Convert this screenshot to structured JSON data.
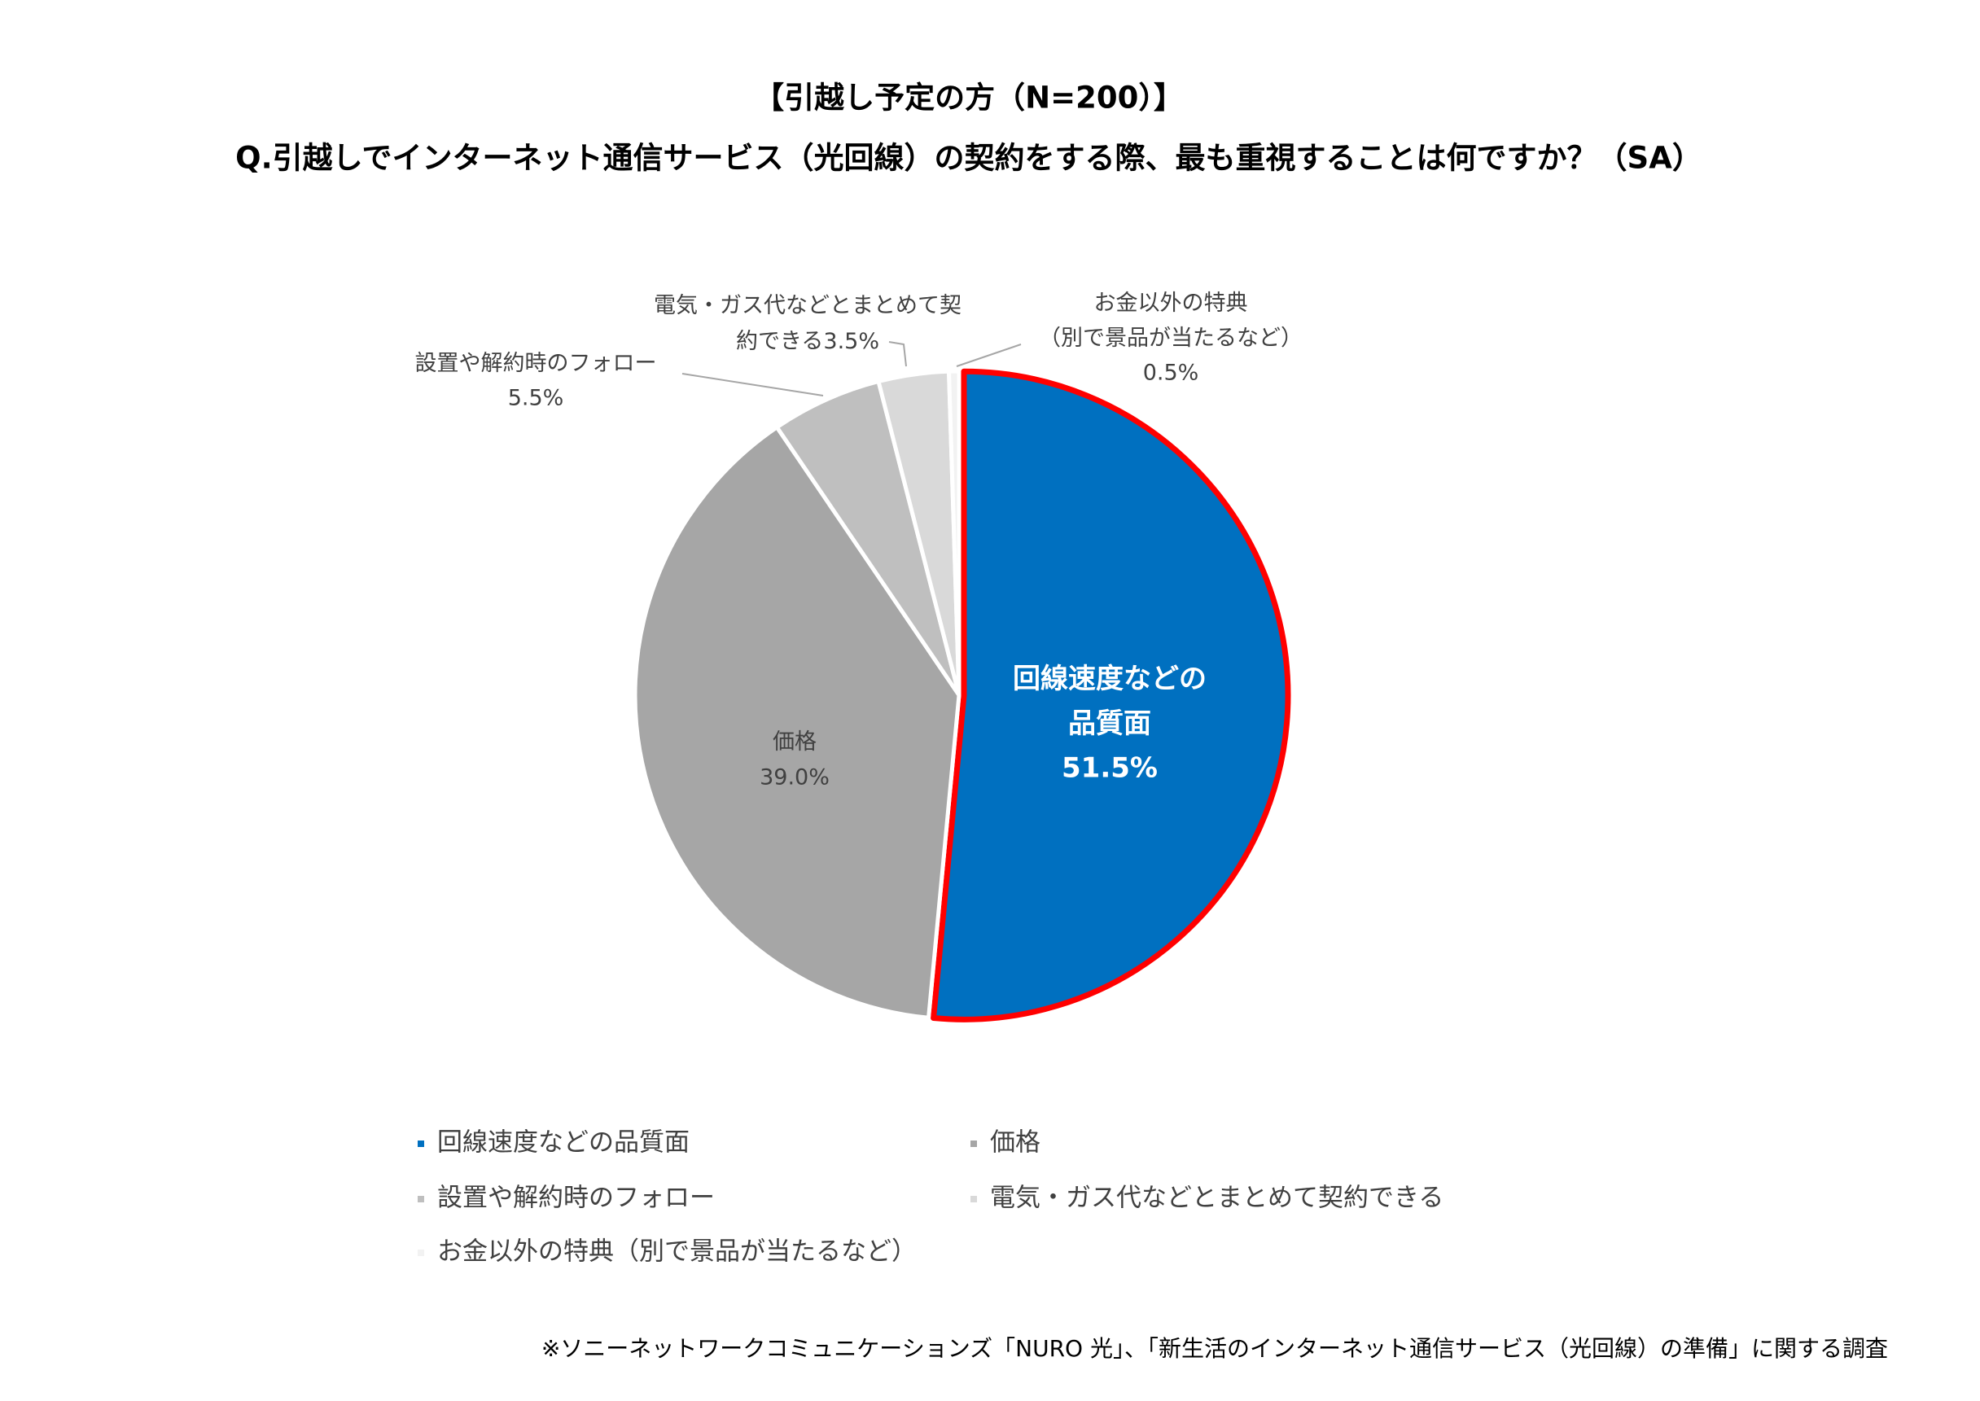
{
  "chart_data": {
    "type": "pie",
    "title": "【引越し予定の方（N=200）】",
    "subtitle": "Q.引越しでインターネット通信サービス（光回線）の契約をする際、最も重視することは何ですか？（SA）",
    "categories": [
      "回線速度などの品質面",
      "価格",
      "設置や解約時のフォロー",
      "電気・ガス代などとまとめて契約できる",
      "お金以外の特典（別で景品が当たるなど）"
    ],
    "values": [
      51.5,
      39.0,
      5.5,
      3.5,
      0.5
    ],
    "value_labels": [
      "51.5%",
      "39.0%",
      "5.5%",
      "3.5%",
      "0.5%"
    ],
    "label_lines": [
      [
        "回線速度などの",
        "品質面"
      ],
      [
        "価格"
      ],
      [
        "設置や解約時のフォロー"
      ],
      [
        "電気・ガス代などとまとめて契",
        "約できる"
      ],
      [
        "お金以外の特典",
        "（別で景品が当たるなど）"
      ]
    ],
    "colors": [
      "#0070c0",
      "#a6a6a6",
      "#bfbfbf",
      "#d9d9d9",
      "#f2f2f2"
    ],
    "highlight": {
      "index": 0,
      "color": "#ff0000"
    },
    "footnote": "※ソニーネットワークコミュニケーションズ「NURO 光」、「新生活のインターネット通信サービス（光回線）の準備」に関する調査"
  }
}
